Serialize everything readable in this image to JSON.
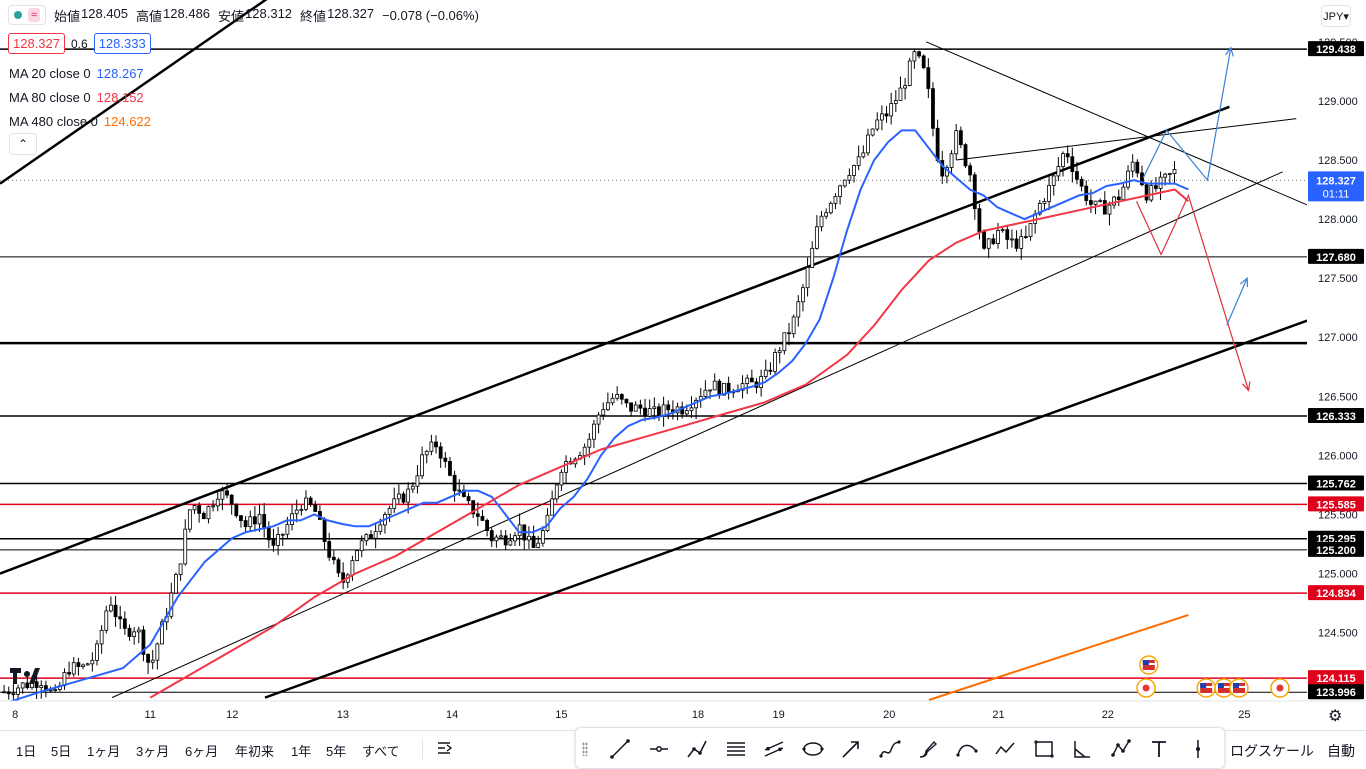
{
  "header": {
    "ohlc": [
      {
        "label": "始値",
        "value": "128.405"
      },
      {
        "label": "高値",
        "value": "128.486"
      },
      {
        "label": "安値",
        "value": "128.312"
      },
      {
        "label": "終値",
        "value": "128.327"
      }
    ],
    "change": "−0.078 (−0.06%)",
    "sell_price": "128.327",
    "spread": "0.6",
    "buy_price": "128.333",
    "approx_icon": "≈",
    "collapse_icon": "⌃",
    "currency": "JPY▾"
  },
  "indicators": [
    {
      "label": "MA 20 close 0",
      "value": "128.267",
      "color": "#2962ff"
    },
    {
      "label": "MA 80 close 0",
      "value": "128.152",
      "color": "#f23645"
    },
    {
      "label": "MA 480 close 0",
      "value": "124.622",
      "color": "#ff6d00"
    }
  ],
  "chart_data": {
    "type": "candlestick",
    "ylim": [
      123.93,
      129.6
    ],
    "xlim": [
      0,
      100
    ],
    "x_ticks": [
      {
        "x": 0.6,
        "label": "8"
      },
      {
        "x": 11.0,
        "label": "11"
      },
      {
        "x": 17.0,
        "label": "12"
      },
      {
        "x": 25.1,
        "label": "13"
      },
      {
        "x": 33.1,
        "label": "14"
      },
      {
        "x": 41.1,
        "label": "15"
      },
      {
        "x": 51.1,
        "label": "18"
      },
      {
        "x": 57.0,
        "label": "19"
      },
      {
        "x": 65.1,
        "label": "20"
      },
      {
        "x": 73.1,
        "label": "21"
      },
      {
        "x": 81.1,
        "label": "22"
      },
      {
        "x": 91.1,
        "label": "25"
      }
    ],
    "y_ticks": [
      "129.500",
      "129.000",
      "128.500",
      "128.000",
      "127.500",
      "127.000",
      "126.500",
      "126.000",
      "125.500",
      "125.000",
      "124.500"
    ],
    "y_tick_values": [
      129.5,
      129.0,
      128.5,
      128.0,
      127.5,
      127.0,
      126.5,
      126.0,
      125.5,
      125.0,
      124.5
    ],
    "current_price": {
      "value": "128.327",
      "countdown": "01:11",
      "color": "#2962ff"
    },
    "price_close_path": [
      [
        0.3,
        124.0
      ],
      [
        1.5,
        124.05
      ],
      [
        3,
        124.1
      ],
      [
        4,
        123.95
      ],
      [
        5,
        124.2
      ],
      [
        6,
        124.2
      ],
      [
        7,
        124.3
      ],
      [
        8,
        124.8
      ],
      [
        9,
        124.5
      ],
      [
        10,
        124.55
      ],
      [
        11,
        124.2
      ],
      [
        12,
        124.6
      ],
      [
        13,
        125.0
      ],
      [
        14,
        125.6
      ],
      [
        15,
        125.5
      ],
      [
        16,
        125.7
      ],
      [
        17,
        125.6
      ],
      [
        18,
        125.4
      ],
      [
        19,
        125.5
      ],
      [
        20,
        125.2
      ],
      [
        21,
        125.4
      ],
      [
        22,
        125.6
      ],
      [
        23,
        125.55
      ],
      [
        24,
        125.2
      ],
      [
        25,
        124.9
      ],
      [
        26,
        125.2
      ],
      [
        27,
        125.3
      ],
      [
        28,
        125.5
      ],
      [
        29,
        125.6
      ],
      [
        30,
        125.7
      ],
      [
        31,
        126.0
      ],
      [
        32,
        126.1
      ],
      [
        33,
        125.8
      ],
      [
        34,
        125.6
      ],
      [
        35,
        125.5
      ],
      [
        36,
        125.3
      ],
      [
        37,
        125.3
      ],
      [
        38,
        125.4
      ],
      [
        39,
        125.2
      ],
      [
        40,
        125.4
      ],
      [
        41,
        125.9
      ],
      [
        42,
        126.0
      ],
      [
        43,
        126.1
      ],
      [
        44,
        126.4
      ],
      [
        45,
        126.5
      ],
      [
        46,
        126.4
      ],
      [
        47,
        126.4
      ],
      [
        48,
        126.35
      ],
      [
        49,
        126.4
      ],
      [
        50,
        126.4
      ],
      [
        51,
        126.5
      ],
      [
        52,
        126.6
      ],
      [
        53,
        126.55
      ],
      [
        54,
        126.6
      ],
      [
        55,
        126.6
      ],
      [
        56,
        126.65
      ],
      [
        57,
        126.9
      ],
      [
        58,
        127.1
      ],
      [
        59,
        127.5
      ],
      [
        60,
        128.0
      ],
      [
        61,
        128.2
      ],
      [
        62,
        128.4
      ],
      [
        63,
        128.5
      ],
      [
        64,
        128.8
      ],
      [
        65,
        128.9
      ],
      [
        66,
        129.1
      ],
      [
        67,
        129.4
      ],
      [
        67.8,
        129.2
      ],
      [
        68.5,
        128.6
      ],
      [
        69,
        128.4
      ],
      [
        70,
        128.7
      ],
      [
        71,
        128.4
      ],
      [
        72,
        127.7
      ],
      [
        73,
        127.9
      ],
      [
        74,
        127.8
      ],
      [
        75,
        127.8
      ],
      [
        76,
        128.1
      ],
      [
        77,
        128.3
      ],
      [
        78,
        128.6
      ],
      [
        79,
        128.3
      ],
      [
        80,
        128.1
      ],
      [
        81,
        128.1
      ],
      [
        82,
        128.2
      ],
      [
        83,
        128.5
      ],
      [
        84,
        128.2
      ],
      [
        85,
        128.3
      ],
      [
        86,
        128.4
      ]
    ],
    "series": [
      {
        "name": "MA 20 close 0",
        "color": "#2962ff",
        "x": [
          0.3,
          3,
          6,
          9,
          11,
          13,
          15,
          17,
          18,
          20,
          21,
          22,
          23,
          24,
          25,
          26,
          27,
          28,
          29,
          30,
          31,
          32,
          33,
          34,
          35,
          36,
          37,
          38,
          39,
          40,
          41,
          42,
          43,
          44,
          45,
          46,
          47,
          48,
          49,
          50,
          51,
          52,
          53,
          54,
          55,
          56,
          57,
          58,
          59,
          60,
          61,
          62,
          63,
          64,
          65,
          66,
          67,
          68,
          69,
          70,
          71,
          72,
          73,
          74,
          75,
          76,
          77,
          78,
          79,
          80,
          81,
          82,
          83,
          84,
          85,
          86,
          87
        ],
        "y": [
          123.9,
          124.0,
          124.1,
          124.2,
          124.4,
          124.8,
          125.1,
          125.3,
          125.35,
          125.4,
          125.45,
          125.45,
          125.5,
          125.45,
          125.42,
          125.4,
          125.4,
          125.45,
          125.5,
          125.55,
          125.6,
          125.6,
          125.65,
          125.7,
          125.7,
          125.65,
          125.5,
          125.35,
          125.35,
          125.4,
          125.55,
          125.65,
          125.8,
          126.0,
          126.15,
          126.25,
          126.3,
          126.32,
          126.35,
          126.4,
          126.45,
          126.5,
          126.52,
          126.55,
          126.58,
          126.62,
          126.7,
          126.8,
          126.95,
          127.15,
          127.5,
          127.9,
          128.25,
          128.5,
          128.65,
          128.75,
          128.75,
          128.6,
          128.45,
          128.35,
          128.25,
          128.2,
          128.1,
          128.05,
          128.0,
          128.05,
          128.1,
          128.15,
          128.2,
          128.22,
          128.28,
          128.3,
          128.33,
          128.3,
          128.3,
          128.3,
          128.25
        ]
      },
      {
        "name": "MA 80 close 0",
        "color": "#f23645",
        "x": [
          11,
          14,
          17,
          20,
          23,
          26,
          29,
          32,
          35,
          38,
          41,
          44,
          47,
          50,
          53,
          56,
          59,
          62,
          64,
          66,
          68,
          70,
          72,
          74,
          76,
          78,
          80,
          82,
          84,
          86,
          87
        ],
        "y": [
          123.95,
          124.15,
          124.35,
          124.55,
          124.8,
          125.0,
          125.15,
          125.35,
          125.55,
          125.75,
          125.9,
          126.05,
          126.15,
          126.25,
          126.35,
          126.45,
          126.6,
          126.85,
          127.1,
          127.4,
          127.65,
          127.8,
          127.9,
          127.95,
          128.0,
          128.05,
          128.1,
          128.15,
          128.2,
          128.25,
          128.15
        ]
      },
      {
        "name": "MA 480 close 0",
        "color": "#ff6d00",
        "x": [
          68,
          87
        ],
        "y": [
          123.93,
          124.65
        ]
      }
    ],
    "horizontal_levels": [
      {
        "value": "129.438",
        "color": "#000000",
        "width": 1.5
      },
      {
        "value": "127.680",
        "color": "#000000",
        "width": 1
      },
      {
        "value": "126.950",
        "color": "#000000",
        "width": 2.5,
        "no_label": true
      },
      {
        "value": "126.333",
        "color": "#000000",
        "width": 1.5
      },
      {
        "value": "125.762",
        "color": "#000000",
        "width": 1.5
      },
      {
        "value": "125.585",
        "color": "#e0001b",
        "width": 1.5
      },
      {
        "value": "125.295",
        "color": "#000000",
        "width": 1.5
      },
      {
        "value": "125.200",
        "color": "#000000",
        "width": 1
      },
      {
        "value": "124.834",
        "color": "#e0001b",
        "width": 1.5
      },
      {
        "value": "124.115",
        "color": "#e0001b",
        "width": 1.5
      },
      {
        "value": "123.996",
        "color": "#000000",
        "width": 1
      }
    ],
    "trend_lines": [
      {
        "points": [
          [
            0,
            128.3
          ],
          [
            40,
            131.5
          ]
        ],
        "color": "#000000",
        "width": 2.5
      },
      {
        "points": [
          [
            0,
            125.0
          ],
          [
            90,
            128.95
          ]
        ],
        "color": "#000000",
        "width": 2.5
      },
      {
        "points": [
          [
            19.4,
            123.95
          ],
          [
            99.5,
            127.3
          ]
        ],
        "color": "#000000",
        "width": 2.5
      },
      {
        "points": [
          [
            8.2,
            123.95
          ],
          [
            93.9,
            128.4
          ]
        ],
        "color": "#000000",
        "width": 1
      },
      {
        "points": [
          [
            70,
            128.5
          ],
          [
            94.9,
            128.85
          ]
        ],
        "color": "#000000",
        "width": 1
      },
      {
        "points": [
          [
            67.8,
            129.5
          ],
          [
            97.1,
            128.05
          ]
        ],
        "color": "#000000",
        "width": 1
      }
    ],
    "projection_up_blue": {
      "color": "#3d7fd6",
      "points": [
        [
          83.7,
          128.35
        ],
        [
          85.4,
          128.75
        ],
        [
          88.4,
          128.33
        ],
        [
          90.1,
          129.45
        ]
      ]
    },
    "projection_down_red": {
      "color": "#e0303f",
      "points": [
        [
          83.2,
          128.15
        ],
        [
          85.0,
          127.7
        ],
        [
          87.0,
          128.2
        ],
        [
          91.4,
          126.55
        ]
      ]
    },
    "projection_rebound_blue": {
      "color": "#3d7fd6",
      "points": [
        [
          89.8,
          127.1
        ],
        [
          91.3,
          127.5
        ]
      ]
    },
    "event_markers": [
      {
        "x": 84.1,
        "row": "upper",
        "kind": "us-flag"
      },
      {
        "x": 83.9,
        "row": "lower",
        "kind": "jp-flag"
      },
      {
        "x": 88.3,
        "row": "lower",
        "kind": "us-flag"
      },
      {
        "x": 89.6,
        "row": "lower",
        "kind": "us-flag"
      },
      {
        "x": 90.7,
        "row": "lower",
        "kind": "us-flag"
      },
      {
        "x": 93.7,
        "row": "lower",
        "kind": "jp-flag"
      }
    ]
  },
  "time_ranges": [
    "1日",
    "5日",
    "1ヶ月",
    "3ヶ月",
    "6ヶ月",
    "年初来",
    "1年",
    "5年",
    "すべて"
  ],
  "footer": {
    "log_scale": "ログスケール",
    "auto": "自動"
  },
  "drawing_tools": [
    "trend-line-icon",
    "horizontal-ray-icon",
    "polyline-icon",
    "horizontal-lines-icon",
    "parallel-channel-icon",
    "ellipse-icon",
    "arrow-icon",
    "path-icon",
    "brush-icon",
    "curve-icon",
    "zigzag-icon",
    "rectangle-icon",
    "angle-icon",
    "pattern-icon",
    "text-icon",
    "vertical-line-icon"
  ],
  "icons": {
    "goto": "goto-date-icon",
    "settings": "gear-icon",
    "logo": "tradingview-logo-icon"
  }
}
